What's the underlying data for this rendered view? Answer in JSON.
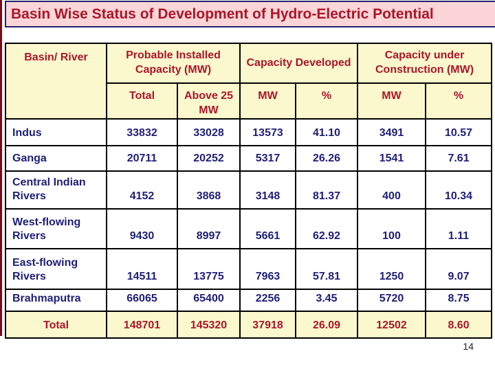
{
  "title": "Basin Wise Status of Development of Hydro-Electric Potential",
  "page_number": "14",
  "colors": {
    "title_bg": "#FBD5D8",
    "title_border": "#22226B",
    "header_bg": "#FCF8CE",
    "header_text": "#AC1528",
    "data_text": "#1E1E78",
    "stripe": "#7B0A18"
  },
  "table": {
    "header": {
      "basin_river": "Basin/ River",
      "groups": [
        {
          "label": "Probable Installed Capacity (MW)",
          "sub": [
            "Total",
            "Above 25 MW"
          ]
        },
        {
          "label": "Capacity Developed",
          "sub": [
            "MW",
            "%"
          ]
        },
        {
          "label": "Capacity under Construction (MW)",
          "sub": [
            "MW",
            "%"
          ]
        }
      ]
    },
    "rows": [
      {
        "basin": "Indus",
        "values": [
          "33832",
          "33028",
          "13573",
          "41.10",
          "3491",
          "10.57"
        ]
      },
      {
        "basin": "Ganga",
        "values": [
          "20711",
          "20252",
          "5317",
          "26.26",
          "1541",
          "7.61"
        ]
      },
      {
        "basin": "Central Indian Rivers",
        "values": [
          "4152",
          "3868",
          "3148",
          "81.37",
          "400",
          "10.34"
        ]
      },
      {
        "basin": "West-flowing Rivers",
        "values": [
          "9430",
          "8997",
          "5661",
          "62.92",
          "100",
          "1.11"
        ]
      },
      {
        "basin": "East-flowing Rivers",
        "values": [
          "14511",
          "13775",
          "7963",
          "57.81",
          "1250",
          "9.07"
        ]
      },
      {
        "basin": "Brahmaputra",
        "values": [
          "66065",
          "65400",
          "2256",
          "3.45",
          "5720",
          "8.75"
        ]
      }
    ],
    "total_row": {
      "label": "Total",
      "values": [
        "148701",
        "145320",
        "37918",
        "26.09",
        "12502",
        "8.60"
      ]
    }
  }
}
